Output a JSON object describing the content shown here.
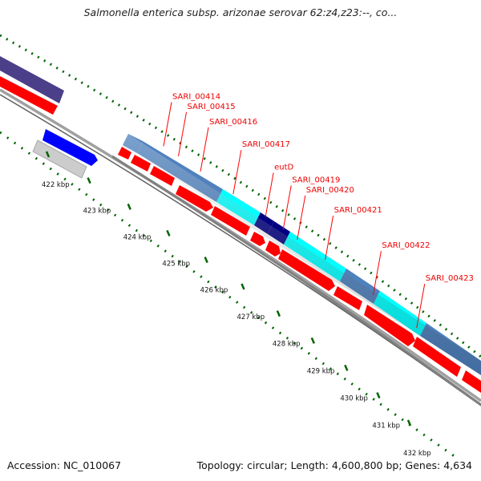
{
  "title": "Salmonella enterica subsp. arizonae serovar 62:z4,z23:--, co...",
  "footer": {
    "accession": "Accession: NC_010067",
    "summary": "Topology: circular; Length: 4,600,800 bp; Genes: 4,634"
  },
  "colors": {
    "cds": "#ff0000",
    "cog_steelblue": "#4f81bd",
    "cog_cyan": "#00ffff",
    "cog_navy": "#000080",
    "cog_slate": "#4b3f8a",
    "blue_feature": "#0000ff",
    "grey_feature": "#cccccc",
    "ticks": "#006400",
    "backbone": "#808080"
  },
  "gene_labels": [
    {
      "text": "SARI_00414",
      "kbp": 422.9
    },
    {
      "text": "SARI_00415",
      "kbp": 423.3
    },
    {
      "text": "SARI_00416",
      "kbp": 423.9
    },
    {
      "text": "SARI_00417",
      "kbp": 424.8
    },
    {
      "text": "eutD",
      "kbp": 425.7
    },
    {
      "text": "SARI_00419",
      "kbp": 426.2
    },
    {
      "text": "SARI_00420",
      "kbp": 426.6
    },
    {
      "text": "SARI_00421",
      "kbp": 427.4
    },
    {
      "text": "SARI_00422",
      "kbp": 428.8
    },
    {
      "text": "SARI_00423",
      "kbp": 430.1
    }
  ],
  "scale_ticks": [
    {
      "label": "422 kbp",
      "kbp": 422
    },
    {
      "label": "423 kbp",
      "kbp": 423
    },
    {
      "label": "424 kbp",
      "kbp": 424
    },
    {
      "label": "425 kbp",
      "kbp": 425
    },
    {
      "label": "426 kbp",
      "kbp": 426
    },
    {
      "label": "427 kbp",
      "kbp": 427
    },
    {
      "label": "428 kbp",
      "kbp": 428
    },
    {
      "label": "429 kbp",
      "kbp": 429
    },
    {
      "label": "430 kbp",
      "kbp": 430
    },
    {
      "label": "431 kbp",
      "kbp": 431
    },
    {
      "label": "432 kbp",
      "kbp": 432
    }
  ]
}
